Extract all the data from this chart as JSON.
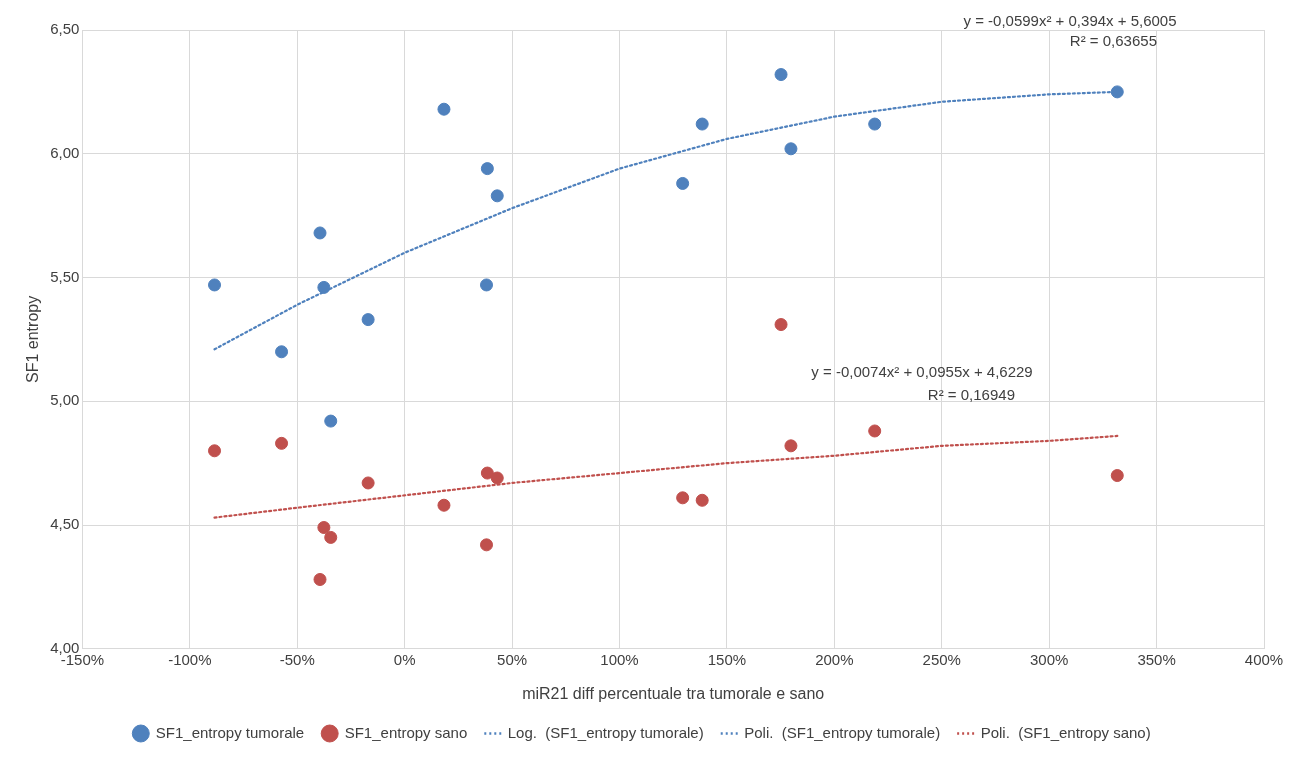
{
  "chart_data": {
    "type": "scatter",
    "xlabel": "miR21 diff percentuale tra tumorale e sano",
    "ylabel": "SF1 entropy",
    "xlim": [
      -150,
      400
    ],
    "xticks": [
      {
        "value": -150,
        "label": "-150%"
      },
      {
        "value": -100,
        "label": "-100%"
      },
      {
        "value": -50,
        "label": "-50%"
      },
      {
        "value": 0,
        "label": "0%"
      },
      {
        "value": 50,
        "label": "50%"
      },
      {
        "value": 100,
        "label": "100%"
      },
      {
        "value": 150,
        "label": "150%"
      },
      {
        "value": 200,
        "label": "200%"
      },
      {
        "value": 250,
        "label": "250%"
      },
      {
        "value": 300,
        "label": "300%"
      },
      {
        "value": 350,
        "label": "350%"
      },
      {
        "value": 400,
        "label": "400%"
      }
    ],
    "ylim": [
      4,
      6.5
    ],
    "yticks": [
      {
        "value": 4,
        "label": "4,00"
      },
      {
        "value": 4.5,
        "label": "4,50"
      },
      {
        "value": 5,
        "label": "5,00"
      },
      {
        "value": 5.5,
        "label": "5,50"
      },
      {
        "value": 6,
        "label": "6,00"
      },
      {
        "value": 6.5,
        "label": "6,50"
      }
    ],
    "grid": true,
    "legend": "bottom",
    "marker": "circle",
    "series": [
      {
        "name": "SF1_entropy tumorale",
        "color": "#4f81bd",
        "x": [
          -88.5,
          -57.3,
          -39.4,
          -37.6,
          -34.4,
          -17,
          18.3,
          38.5,
          38.1,
          43.1,
          129.4,
          138.5,
          175.2,
          179.8,
          218.8,
          331.7
        ],
        "values": [
          5.47,
          5.2,
          5.68,
          5.46,
          4.92,
          5.33,
          6.18,
          5.94,
          5.47,
          5.83,
          5.88,
          6.12,
          6.32,
          6.02,
          6.12,
          6.25
        ]
      },
      {
        "name": "SF1_entropy sano",
        "color": "#c0504d",
        "x": [
          -88.5,
          -57.3,
          -39.4,
          -37.6,
          -34.4,
          -17,
          18.3,
          38.5,
          38.1,
          43.1,
          129.4,
          138.5,
          175.2,
          179.8,
          218.8,
          331.7
        ],
        "values": [
          4.8,
          4.83,
          4.28,
          4.49,
          4.45,
          4.67,
          4.58,
          4.71,
          4.42,
          4.69,
          4.61,
          4.6,
          5.31,
          4.82,
          4.88,
          4.7
        ]
      },
      {
        "name": "Log.  (SF1_entropy tumorale)",
        "type": "line",
        "color": "#4f81bd",
        "line_style": "dotted",
        "marker": "none"
      },
      {
        "name": "Poli.  (SF1_entropy tumorale)",
        "type": "line",
        "color": "#4f81bd",
        "line_style": "dotted",
        "marker": "none",
        "x": [
          -88.5,
          -50,
          0,
          50,
          100,
          150,
          200,
          250,
          300,
          331.7
        ],
        "values": [
          5.21,
          5.39,
          5.6,
          5.78,
          5.94,
          6.06,
          6.15,
          6.21,
          6.24,
          6.25
        ]
      },
      {
        "name": "Poli.  (SF1_entropy sano)",
        "type": "line",
        "color": "#c0504d",
        "line_style": "dotted",
        "marker": "none",
        "x": [
          -88.5,
          -50,
          0,
          50,
          100,
          150,
          200,
          250,
          300,
          331.7
        ],
        "values": [
          4.53,
          4.57,
          4.62,
          4.67,
          4.71,
          4.75,
          4.78,
          4.82,
          4.84,
          4.86
        ]
      }
    ],
    "annotations": [
      "y = -0,0599x² + 0,394x + 5,6005",
      "R² = 0,63655",
      "y = -0,0074x² + 0,0955x + 4,6229",
      "R² = 0,16949"
    ]
  }
}
